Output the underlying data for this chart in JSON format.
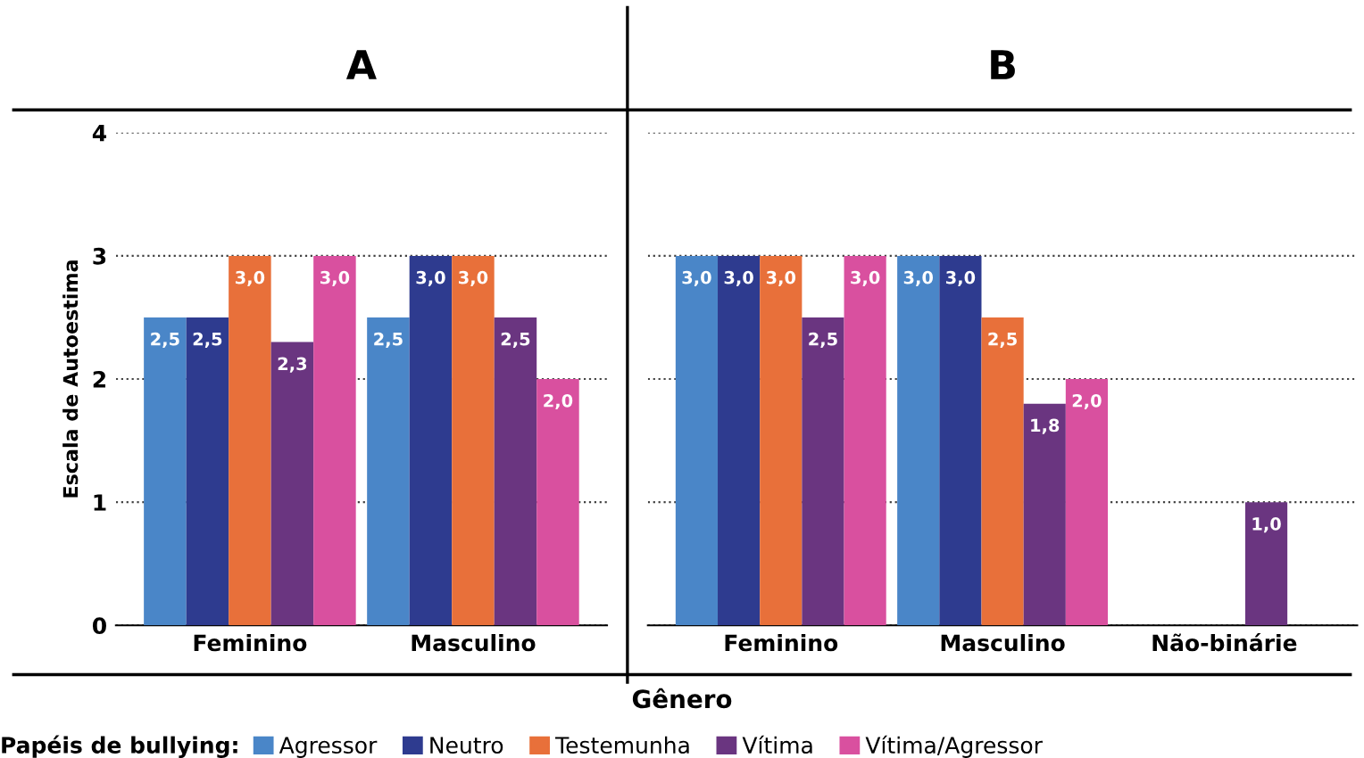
{
  "chart_data": [
    {
      "type": "bar",
      "title": "A",
      "ylabel": "Escala de Autoestima",
      "xlabel": "Gênero",
      "legend_title": "Papéis de bullying:",
      "legend": "bottom",
      "grid": "y",
      "ylim": [
        0,
        4
      ],
      "yticks": [
        0,
        1,
        2,
        3,
        4
      ],
      "categories": [
        "Feminino",
        "Masculino"
      ],
      "series": [
        {
          "name": "Agressor",
          "color": "#4a86c8",
          "values": [
            2.5,
            2.5
          ],
          "value_labels": [
            "2,5",
            "2,5"
          ]
        },
        {
          "name": "Neutro",
          "color": "#2e3b8f",
          "values": [
            2.5,
            3.0
          ],
          "value_labels": [
            "2,5",
            "3,0"
          ]
        },
        {
          "name": "Testemunha",
          "color": "#e8703a",
          "values": [
            3.0,
            3.0
          ],
          "value_labels": [
            "3,0",
            "3,0"
          ]
        },
        {
          "name": "Vítima",
          "color": "#6a3580",
          "values": [
            2.3,
            2.5
          ],
          "value_labels": [
            "2,3",
            "2,5"
          ]
        },
        {
          "name": "Vítima/Agressor",
          "color": "#d9509f",
          "values": [
            3.0,
            2.0
          ],
          "value_labels": [
            "3,0",
            "2,0"
          ]
        }
      ]
    },
    {
      "type": "bar",
      "title": "B",
      "grid": "y",
      "ylim": [
        0,
        4
      ],
      "yticks": [
        0,
        1,
        2,
        3,
        4
      ],
      "tick_labels": "x",
      "categories": [
        "Feminino",
        "Masculino",
        "Não-binárie"
      ],
      "series": [
        {
          "color": "#4a86c8",
          "values": [
            3.0,
            3.0,
            null
          ],
          "value_labels": [
            "3,0",
            "3,0",
            null
          ]
        },
        {
          "color": "#2e3b8f",
          "values": [
            3.0,
            3.0,
            null
          ],
          "value_labels": [
            "3,0",
            "3,0",
            null
          ]
        },
        {
          "color": "#e8703a",
          "values": [
            3.0,
            2.5,
            null
          ],
          "value_labels": [
            "3,0",
            "2,5",
            null
          ]
        },
        {
          "color": "#6a3580",
          "values": [
            2.5,
            1.8,
            1.0
          ],
          "value_labels": [
            "2,5",
            "1,8",
            "1,0"
          ]
        },
        {
          "color": "#d9509f",
          "values": [
            3.0,
            2.0,
            null
          ],
          "value_labels": [
            "3,0",
            "2,0",
            null
          ]
        }
      ]
    }
  ]
}
